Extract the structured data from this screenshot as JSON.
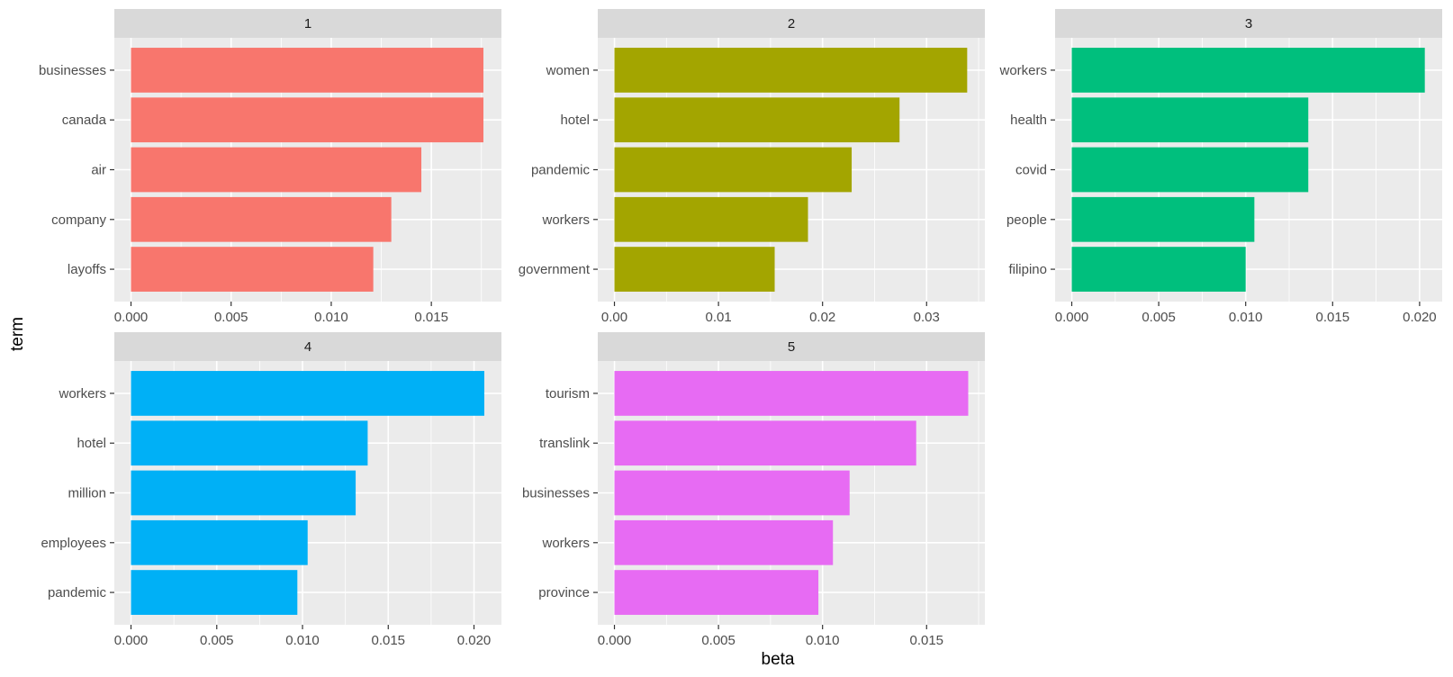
{
  "chart_data": {
    "type": "bar",
    "orientation": "horizontal",
    "xlabel": "beta",
    "ylabel": "term",
    "grid": true,
    "legend": "none",
    "facets": [
      {
        "label": "1",
        "color": "#F8766D",
        "xlim": [
          0,
          0.0185
        ],
        "ticks": [
          0,
          0.005,
          0.01,
          0.015
        ],
        "tick_labels": [
          "0.000",
          "0.005",
          "0.010",
          "0.015"
        ],
        "categories": [
          "businesses",
          "canada",
          "air",
          "company",
          "layoffs"
        ],
        "values": [
          0.0176,
          0.0176,
          0.0145,
          0.013,
          0.0121
        ]
      },
      {
        "label": "2",
        "color": "#A3A500",
        "xlim": [
          0,
          0.0356
        ],
        "ticks": [
          0,
          0.01,
          0.02,
          0.03
        ],
        "tick_labels": [
          "0.00",
          "0.01",
          "0.02",
          "0.03"
        ],
        "categories": [
          "women",
          "hotel",
          "pandemic",
          "workers",
          "government"
        ],
        "values": [
          0.0339,
          0.0274,
          0.0228,
          0.0186,
          0.0154
        ]
      },
      {
        "label": "3",
        "color": "#00BF7D",
        "xlim": [
          0,
          0.0213
        ],
        "ticks": [
          0,
          0.005,
          0.01,
          0.015,
          0.02
        ],
        "tick_labels": [
          "0.000",
          "0.005",
          "0.010",
          "0.015",
          "0.020"
        ],
        "categories": [
          "workers",
          "health",
          "covid",
          "people",
          "filipino"
        ],
        "values": [
          0.0203,
          0.0136,
          0.0136,
          0.0105,
          0.01
        ]
      },
      {
        "label": "4",
        "color": "#00B0F6",
        "xlim": [
          0,
          0.0216
        ],
        "ticks": [
          0,
          0.005,
          0.01,
          0.015,
          0.02
        ],
        "tick_labels": [
          "0.000",
          "0.005",
          "0.010",
          "0.015",
          "0.020"
        ],
        "categories": [
          "workers",
          "hotel",
          "million",
          "employees",
          "pandemic"
        ],
        "values": [
          0.0206,
          0.0138,
          0.0131,
          0.0103,
          0.0097
        ]
      },
      {
        "label": "5",
        "color": "#E76BF3",
        "xlim": [
          0,
          0.0178
        ],
        "ticks": [
          0,
          0.005,
          0.01,
          0.015
        ],
        "tick_labels": [
          "0.000",
          "0.005",
          "0.010",
          "0.015"
        ],
        "categories": [
          "tourism",
          "translink",
          "businesses",
          "workers",
          "province"
        ],
        "values": [
          0.017,
          0.0145,
          0.0113,
          0.0105,
          0.0098
        ]
      }
    ]
  }
}
